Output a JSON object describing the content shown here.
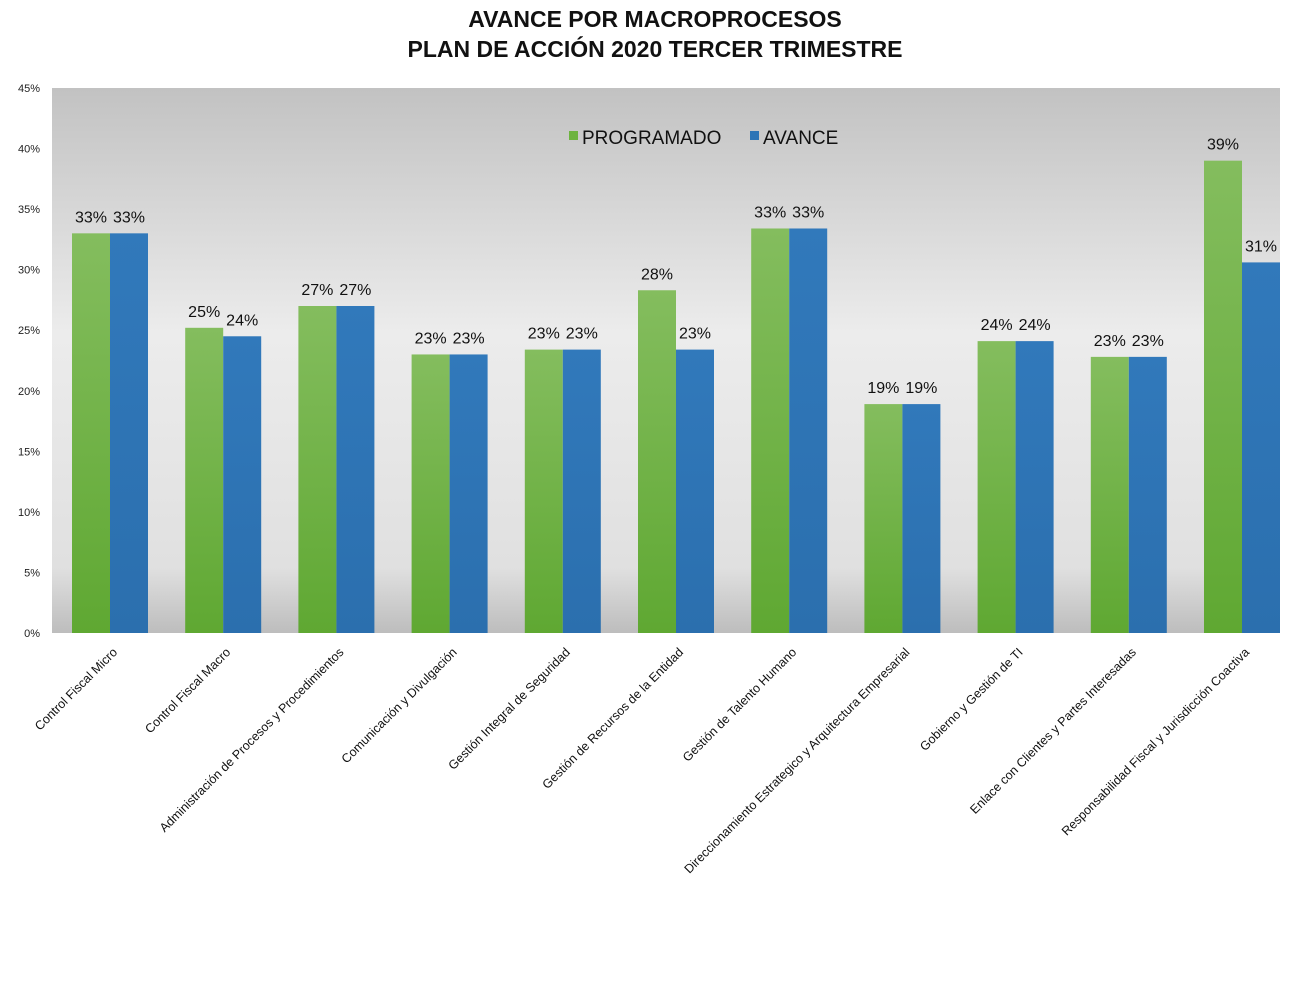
{
  "chart_data": {
    "type": "bar",
    "title_lines": [
      "AVANCE POR MACROPROCESOS",
      "PLAN DE ACCIÓN 2020 TERCER TRIMESTRE"
    ],
    "categories": [
      "Control Fiscal Micro",
      "Control Fiscal Macro",
      "Administración de Procesos y Procedimientos",
      "Comunicación y Divulgación",
      "Gestión Integral de Seguridad",
      "Gestión de Recursos de la Entidad",
      "Gestión de Talento Humano",
      "Direccionamiento Estrategico y Arquitectura Empresarial",
      "Gobierno y Gestión de TI",
      "Enlace con Clientes y Partes Interesadas",
      "Responsabilidad Fiscal y Jurisdicción Coactiva"
    ],
    "series": [
      {
        "name": "PROGRAMADO",
        "color": "#6db33f",
        "values": [
          0.33,
          0.252,
          0.27,
          0.23,
          0.234,
          0.283,
          0.334,
          0.189,
          0.241,
          0.228,
          0.39
        ],
        "labels": [
          "33%",
          "25%",
          "27%",
          "23%",
          "23%",
          "28%",
          "33%",
          "19%",
          "24%",
          "23%",
          "39%"
        ]
      },
      {
        "name": "AVANCE",
        "color": "#2e75b6",
        "values": [
          0.33,
          0.245,
          0.27,
          0.23,
          0.234,
          0.234,
          0.334,
          0.189,
          0.241,
          0.228,
          0.306
        ],
        "labels": [
          "33%",
          "24%",
          "27%",
          "23%",
          "23%",
          "23%",
          "33%",
          "19%",
          "24%",
          "23%",
          "31%"
        ]
      }
    ],
    "y_ticks": [
      {
        "value": 0,
        "label": "0%"
      },
      {
        "value": 0.05,
        "label": "5%"
      },
      {
        "value": 0.1,
        "label": "10%"
      },
      {
        "value": 0.15,
        "label": "15%"
      },
      {
        "value": 0.2,
        "label": "20%"
      },
      {
        "value": 0.25,
        "label": "25%"
      },
      {
        "value": 0.3,
        "label": "30%"
      },
      {
        "value": 0.35,
        "label": "35%"
      },
      {
        "value": 0.4,
        "label": "40%"
      },
      {
        "value": 0.45,
        "label": "45%"
      }
    ],
    "ylim": [
      0,
      0.45
    ],
    "grid": false,
    "legend_position": "top-center",
    "xlabel": "",
    "ylabel": ""
  }
}
